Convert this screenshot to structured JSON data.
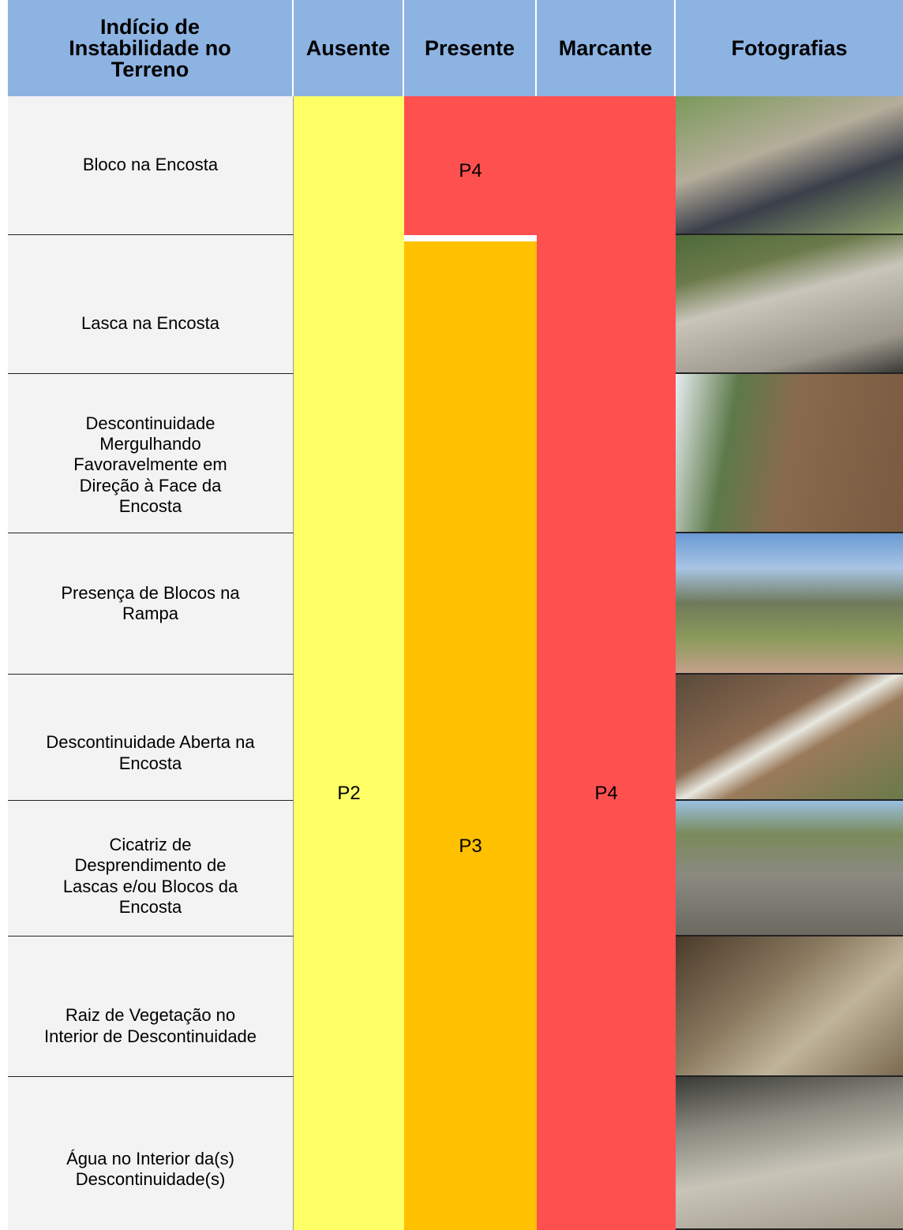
{
  "table": {
    "header": [
      "Indício de Instabilidade no Terreno",
      "Ausente",
      "Presente",
      "Marcante",
      "Fotografias"
    ],
    "rows": [
      "Bloco na Encosta",
      "Lasca na Encosta",
      "Descontinuidade Mergulhando Favoravelmente em Direção à Face da Encosta",
      "Presença de Blocos na Rampa",
      "Descontinuidade Aberta na Encosta",
      "Cicatriz de Desprendimento de Lascas e/ou Blocos da Encosta",
      "Raiz de Vegetação no Interior de Descontinuidade",
      "Água no Interior da(s) Descontinuidade(s)"
    ],
    "ausente": "P2",
    "presente": [
      "P4",
      "P3"
    ],
    "marcante": "P4"
  }
}
